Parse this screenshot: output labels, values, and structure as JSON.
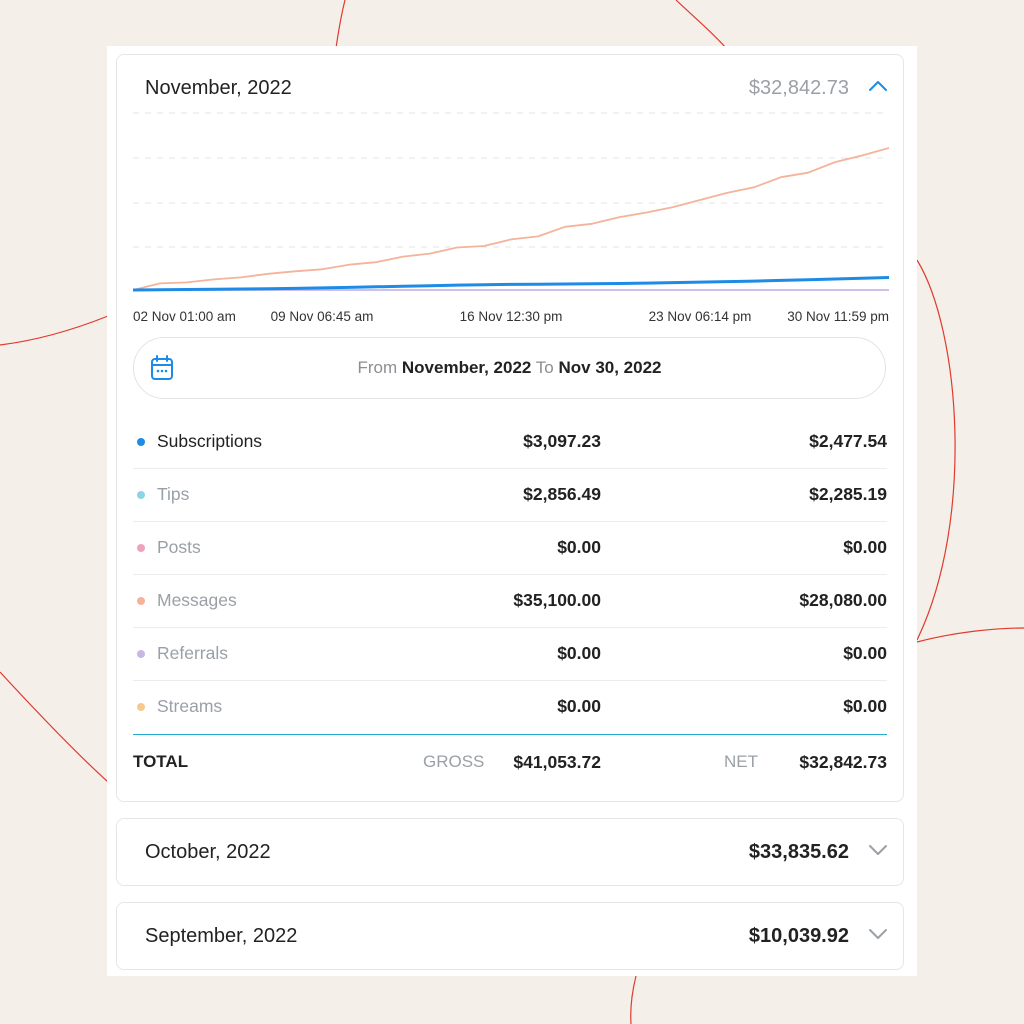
{
  "colors": {
    "background": "#f4efe9",
    "accent": "#1e8be6",
    "subscriptions": "#1e8be6",
    "tips": "#8fd3e6",
    "posts": "#f2a2b8",
    "messages": "#f4b39a",
    "referrals": "#c8b6e6",
    "streams": "#f7c98e",
    "total_rule": "#23a9c9",
    "decor_line": "#e03a2f"
  },
  "months": {
    "november": {
      "title": "November, 2022",
      "total": "$32,842.73",
      "chevron": "chevron-up-icon"
    },
    "october": {
      "title": "October, 2022",
      "total": "$33,835.62",
      "chevron": "chevron-down-icon"
    },
    "september": {
      "title": "September, 2022",
      "total": "$10,039.92",
      "chevron": "chevron-down-icon"
    }
  },
  "chart_data": {
    "type": "line",
    "x_labels": [
      "02 Nov 01:00 am",
      "09 Nov 06:45 am",
      "16 Nov 12:30 pm",
      "23 Nov 06:14 pm",
      "30 Nov 11:59 pm"
    ],
    "grid": "horizontal dashed",
    "series": [
      {
        "color": "#f4b39a",
        "values": [
          0,
          1300,
          1500,
          2100,
          2500,
          3200,
          3700,
          4100,
          5000,
          5500,
          6600,
          7200,
          8400,
          8700,
          10000,
          10600,
          12500,
          13100,
          14400,
          15300,
          16400,
          17800,
          19200,
          20300,
          22300,
          23200,
          25300,
          26600,
          28080
        ]
      },
      {
        "color": "#1e8be6",
        "values": [
          0,
          50,
          100,
          150,
          200,
          260,
          320,
          420,
          520,
          640,
          760,
          860,
          960,
          1040,
          1100,
          1140,
          1180,
          1220,
          1280,
          1360,
          1460,
          1560,
          1660,
          1760,
          1900,
          2040,
          2180,
          2320,
          2477.54
        ]
      },
      {
        "color": "#c8b6e6",
        "values": [
          0,
          0,
          0,
          0,
          0,
          0,
          0,
          0,
          0,
          0,
          0,
          0,
          0,
          0,
          0,
          0,
          0,
          0,
          0,
          0,
          0,
          0,
          0,
          0,
          0,
          0,
          0,
          0,
          0
        ]
      }
    ],
    "ylim": [
      0,
      35000
    ]
  },
  "date_range": {
    "icon": "calendar-icon",
    "from_label": "From",
    "from_value": "November, 2022",
    "to_label": "To",
    "to_value": "Nov 30, 2022"
  },
  "breakdown": {
    "rows": [
      {
        "key": "subscriptions",
        "label": "Subscriptions",
        "gross": "$3,097.23",
        "net": "$2,477.54"
      },
      {
        "key": "tips",
        "label": "Tips",
        "gross": "$2,856.49",
        "net": "$2,285.19"
      },
      {
        "key": "posts",
        "label": "Posts",
        "gross": "$0.00",
        "net": "$0.00"
      },
      {
        "key": "messages",
        "label": "Messages",
        "gross": "$35,100.00",
        "net": "$28,080.00"
      },
      {
        "key": "referrals",
        "label": "Referrals",
        "gross": "$0.00",
        "net": "$0.00"
      },
      {
        "key": "streams",
        "label": "Streams",
        "gross": "$0.00",
        "net": "$0.00"
      }
    ],
    "total": {
      "label": "TOTAL",
      "gross_label": "GROSS",
      "gross": "$41,053.72",
      "net_label": "NET",
      "net": "$32,842.73"
    }
  }
}
